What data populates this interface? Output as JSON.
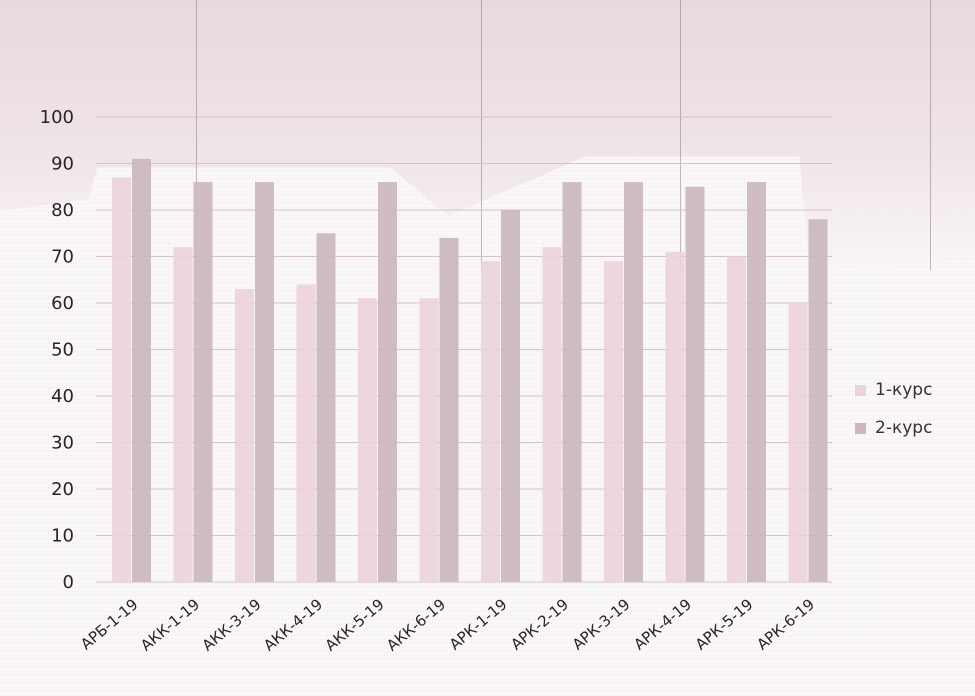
{
  "chart_data": {
    "type": "bar",
    "categories": [
      "АРБ-1-19",
      "АКК-1-19",
      "АКК-3-19",
      "АКК-4-19",
      "АКК-5-19",
      "АКК-6-19",
      "АРК-1-19",
      "АРК-2-19",
      "АРК-3-19",
      "АРК-4-19",
      "АРК-5-19",
      "АРК-6-19"
    ],
    "series": [
      {
        "name": "1-курс",
        "color": "#ecd3d9",
        "values": [
          87,
          72,
          63,
          64,
          61,
          61,
          69,
          72,
          69,
          71,
          70,
          60
        ]
      },
      {
        "name": "2-курс",
        "color": "#cbb7bd",
        "values": [
          91,
          86,
          86,
          75,
          86,
          74,
          80,
          86,
          86,
          85,
          86,
          78
        ]
      }
    ],
    "y_ticks": [
      "0",
      "10",
      "20",
      "30",
      "40",
      "50",
      "60",
      "70",
      "80",
      "90",
      "100"
    ],
    "ylim": [
      0,
      100
    ],
    "grid": true,
    "legend": "right"
  }
}
